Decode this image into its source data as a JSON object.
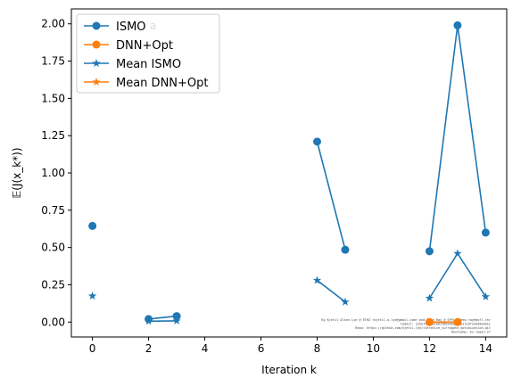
{
  "chart_data": {
    "type": "line",
    "xlabel": "Iteration k",
    "ylabel": "𝔼(J(x_k*))",
    "xlim": [
      -0.75,
      14.75
    ],
    "ylim": [
      -0.1,
      2.1
    ],
    "xticks": [
      0,
      2,
      4,
      6,
      8,
      10,
      12,
      14
    ],
    "yticks": [
      0.0,
      0.25,
      0.5,
      0.75,
      1.0,
      1.25,
      1.5,
      1.75,
      2.0
    ],
    "ytick_labels": [
      "0.00",
      "0.25",
      "0.50",
      "0.75",
      "1.00",
      "1.25",
      "1.50",
      "1.75",
      "2.00"
    ],
    "grid": false,
    "legend_position": "top-left",
    "series": [
      {
        "name": "ISMO",
        "color": "#1f77b4",
        "marker": "circle",
        "segments": [
          [
            [
              0,
              0.645
            ]
          ],
          [
            [
              2,
              0.02
            ],
            [
              3,
              0.04
            ]
          ],
          [
            [
              8,
              1.21
            ],
            [
              9,
              0.485
            ]
          ],
          [
            [
              12,
              0.475
            ],
            [
              13,
              1.99
            ],
            [
              14,
              0.6
            ]
          ]
        ]
      },
      {
        "name": "DNN+Opt",
        "color": "#ff7f0e",
        "marker": "circle",
        "segments": [
          [
            [
              12,
              0.0
            ],
            [
              13,
              0.0
            ]
          ]
        ]
      },
      {
        "name": "Mean ISMO",
        "color": "#1f77b4",
        "marker": "star",
        "segments": [
          [
            [
              0,
              0.175
            ]
          ],
          [
            [
              2,
              0.006
            ],
            [
              3,
              0.008
            ]
          ],
          [
            [
              8,
              0.28
            ],
            [
              9,
              0.135
            ]
          ],
          [
            [
              12,
              0.16
            ],
            [
              13,
              0.46
            ],
            [
              14,
              0.17
            ]
          ]
        ]
      },
      {
        "name": "Mean DNN+Opt",
        "color": "#ff7f0e",
        "marker": "star",
        "segments": [
          [
            [
              12,
              0.0
            ],
            [
              13,
              0.0
            ]
          ]
        ]
      }
    ],
    "annotations": [
      "By Kjetil Olsen Lye @ ETHZ <kjetil.o.lye@gmail.com> and Deep Ray @ EPFL <deep.ray@epfl.ch>",
      "Commit: 1e5ef412f6ce6c58b94aa5a5b1fe5f2a5d8e4b1c",
      "Repo: https://github.com/kjetil-lye/iterative_surrogate_optimization.git",
      "Hostname: ms-login-27"
    ],
    "stray_label": "a"
  }
}
